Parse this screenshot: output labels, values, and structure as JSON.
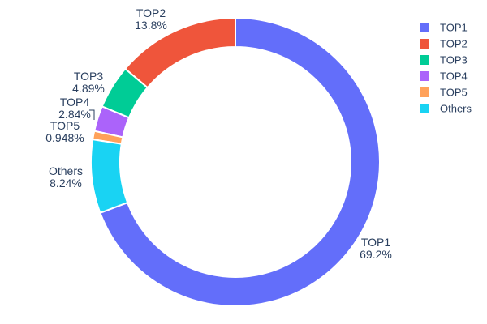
{
  "chart_data": {
    "type": "pie",
    "title": "",
    "hole_ratio": 0.8,
    "slices": [
      {
        "label": "TOP1",
        "value": 69.2,
        "percent_label": "69.2%",
        "color": "#636efa"
      },
      {
        "label": "TOP2",
        "value": 13.8,
        "percent_label": "13.8%",
        "color": "#ef553b"
      },
      {
        "label": "TOP3",
        "value": 4.89,
        "percent_label": "4.89%",
        "color": "#00cc96"
      },
      {
        "label": "TOP4",
        "value": 2.84,
        "percent_label": "2.84%",
        "color": "#ab63fa"
      },
      {
        "label": "TOP5",
        "value": 0.948,
        "percent_label": "0.948%",
        "color": "#ffa15a"
      },
      {
        "label": "Others",
        "value": 8.24,
        "percent_label": "8.24%",
        "color": "#19d3f3"
      }
    ],
    "draw_order": [
      "TOP2",
      "TOP3",
      "TOP4",
      "TOP5",
      "Others",
      "TOP1"
    ],
    "start_angle_deg": 90,
    "direction": "counterclockwise",
    "legend": {
      "position": "right",
      "entries": [
        "TOP1",
        "TOP2",
        "TOP3",
        "TOP4",
        "TOP5",
        "Others"
      ]
    },
    "text_color": "#2a3f5f",
    "background_color": "#ffffff"
  }
}
